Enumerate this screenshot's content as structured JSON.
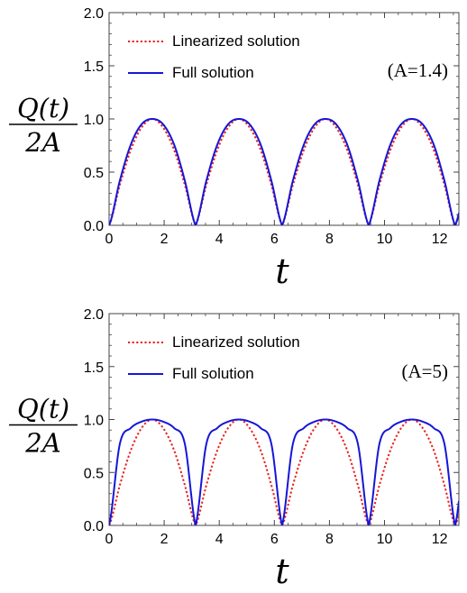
{
  "chart_data": [
    {
      "type": "line",
      "title": "",
      "xlabel": "t",
      "ylabel_numerator": "Q(t)",
      "ylabel_denominator": "2A",
      "annotation": "(A=1.4)",
      "xlim": [
        0,
        12.7
      ],
      "ylim": [
        0,
        2.0
      ],
      "x_ticks": [
        0,
        2,
        4,
        6,
        8,
        10,
        12
      ],
      "x_tick_labels": [
        "0",
        "2",
        "4",
        "6",
        "8",
        "10",
        "12"
      ],
      "y_ticks": [
        0,
        0.5,
        1.0,
        1.5,
        2.0
      ],
      "y_tick_labels": [
        "0.0",
        "0.5",
        "1.0",
        "1.5",
        "2.0"
      ],
      "legend_position": "top-left",
      "grid": false,
      "series": [
        {
          "name": "Linearized solution",
          "color": "#e8201c",
          "style": "dotted",
          "function": "|sin(t)|",
          "x": [
            0,
            0.39,
            0.79,
            1.18,
            1.57,
            1.96,
            2.36,
            2.75,
            3.14
          ],
          "values": [
            0,
            0.38,
            0.71,
            0.92,
            1.0,
            0.92,
            0.71,
            0.38,
            0
          ],
          "period": 3.1416
        },
        {
          "name": "Full solution",
          "color": "#1616d8",
          "style": "solid",
          "function": "(2/pi)*arcsin(sin(Q(t)/2A) ...) approx",
          "x": [
            0,
            0.39,
            0.79,
            1.18,
            1.57,
            1.96,
            2.36,
            2.75,
            3.14
          ],
          "values": [
            0,
            0.42,
            0.76,
            0.95,
            1.0,
            0.95,
            0.76,
            0.42,
            0
          ],
          "period": 3.1416
        }
      ]
    },
    {
      "type": "line",
      "title": "",
      "xlabel": "t",
      "ylabel_numerator": "Q(t)",
      "ylabel_denominator": "2A",
      "annotation": "(A=5)",
      "xlim": [
        0,
        12.7
      ],
      "ylim": [
        0,
        2.0
      ],
      "x_ticks": [
        0,
        2,
        4,
        6,
        8,
        10,
        12
      ],
      "x_tick_labels": [
        "0",
        "2",
        "4",
        "6",
        "8",
        "10",
        "12"
      ],
      "y_ticks": [
        0,
        0.5,
        1.0,
        1.5,
        2.0
      ],
      "y_tick_labels": [
        "0.0",
        "0.5",
        "1.0",
        "1.5",
        "2.0"
      ],
      "legend_position": "top-left",
      "grid": false,
      "series": [
        {
          "name": "Linearized solution",
          "color": "#e8201c",
          "style": "dotted",
          "x": [
            0,
            0.39,
            0.79,
            1.18,
            1.57,
            1.96,
            2.36,
            2.75,
            3.14
          ],
          "values": [
            0,
            0.38,
            0.71,
            0.92,
            1.0,
            0.92,
            0.71,
            0.38,
            0
          ],
          "period": 3.1416
        },
        {
          "name": "Full solution",
          "color": "#1616d8",
          "style": "solid",
          "x": [
            0,
            0.39,
            0.79,
            1.18,
            1.57,
            1.96,
            2.36,
            2.75,
            3.14
          ],
          "values": [
            0,
            0.77,
            0.92,
            0.98,
            1.0,
            0.98,
            0.92,
            0.77,
            0
          ],
          "period": 3.1416
        }
      ]
    }
  ]
}
